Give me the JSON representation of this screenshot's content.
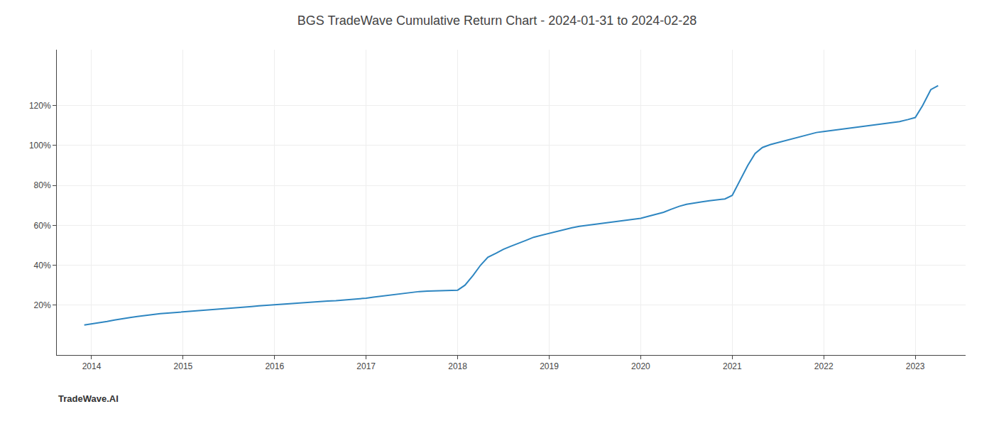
{
  "chart_data": {
    "type": "line",
    "title": "BGS TradeWave Cumulative Return Chart - 2024-01-31 to 2024-02-28",
    "annotations": [
      "TradeWave.AI"
    ],
    "color": "#2e86c1",
    "grid": true,
    "xlim": [
      2013.62,
      2023.55
    ],
    "xticks": [
      2014,
      2015,
      2016,
      2017,
      2018,
      2019,
      2020,
      2021,
      2022,
      2023
    ],
    "ylim": [
      -5,
      148
    ],
    "yticks": [
      {
        "value": 20,
        "label": "20%"
      },
      {
        "value": 40,
        "label": "40%"
      },
      {
        "value": 60,
        "label": "60%"
      },
      {
        "value": 80,
        "label": "80%"
      },
      {
        "value": 100,
        "label": "100%"
      },
      {
        "value": 120,
        "label": "120%"
      }
    ],
    "x": [
      2013.92,
      2014.0,
      2014.08,
      2014.17,
      2014.25,
      2014.33,
      2014.42,
      2014.5,
      2014.58,
      2014.67,
      2014.75,
      2014.83,
      2014.92,
      2015.0,
      2015.08,
      2015.17,
      2015.25,
      2015.33,
      2015.42,
      2015.5,
      2015.58,
      2015.67,
      2015.75,
      2015.83,
      2015.92,
      2016.0,
      2016.08,
      2016.17,
      2016.25,
      2016.33,
      2016.42,
      2016.5,
      2016.58,
      2016.67,
      2016.75,
      2016.83,
      2016.92,
      2017.0,
      2017.08,
      2017.17,
      2017.25,
      2017.33,
      2017.42,
      2017.5,
      2017.58,
      2017.67,
      2017.75,
      2017.83,
      2017.92,
      2018.0,
      2018.08,
      2018.17,
      2018.25,
      2018.33,
      2018.42,
      2018.5,
      2018.58,
      2018.67,
      2018.75,
      2018.83,
      2018.92,
      2019.0,
      2019.08,
      2019.17,
      2019.25,
      2019.33,
      2019.42,
      2019.5,
      2019.58,
      2019.67,
      2019.75,
      2019.83,
      2019.92,
      2020.0,
      2020.08,
      2020.17,
      2020.25,
      2020.33,
      2020.42,
      2020.5,
      2020.58,
      2020.67,
      2020.75,
      2020.83,
      2020.92,
      2021.0,
      2021.08,
      2021.17,
      2021.25,
      2021.33,
      2021.42,
      2021.5,
      2021.58,
      2021.67,
      2021.75,
      2021.83,
      2021.92,
      2022.0,
      2022.08,
      2022.17,
      2022.25,
      2022.33,
      2022.42,
      2022.5,
      2022.58,
      2022.67,
      2022.75,
      2022.83,
      2022.92,
      2023.0,
      2023.08,
      2023.17,
      2023.25
    ],
    "values": [
      10.0,
      10.5,
      11.0,
      11.8,
      12.5,
      13.2,
      13.8,
      14.3,
      14.8,
      15.3,
      15.7,
      16.0,
      16.3,
      16.6,
      16.9,
      17.2,
      17.5,
      17.8,
      18.1,
      18.4,
      18.7,
      19.0,
      19.3,
      19.6,
      19.9,
      20.2,
      20.5,
      20.8,
      21.1,
      21.4,
      21.6,
      21.8,
      22.0,
      22.2,
      22.5,
      22.8,
      23.1,
      23.5,
      24.0,
      24.5,
      25.0,
      25.5,
      26.0,
      26.5,
      26.8,
      27.0,
      27.1,
      27.1,
      27.2,
      27.5,
      30.0,
      35.0,
      40.0,
      44.0,
      46.0,
      48.0,
      49.5,
      51.0,
      52.5,
      54.0,
      55.0,
      56.0,
      57.0,
      58.0,
      58.8,
      59.5,
      60.0,
      60.5,
      61.0,
      61.5,
      62.0,
      62.5,
      63.0,
      63.5,
      64.5,
      65.5,
      66.5,
      68.0,
      69.5,
      70.5,
      71.2,
      71.8,
      72.3,
      72.8,
      73.2,
      75.0,
      82.0,
      90.0,
      96.0,
      99.0,
      100.5,
      101.5,
      102.5,
      103.5,
      104.5,
      105.5,
      106.5,
      107.0,
      107.5,
      108.0,
      108.5,
      109.0,
      109.5,
      110.0,
      110.5,
      111.0,
      111.5,
      112.0,
      113.0,
      114.0,
      120.0,
      128.0,
      130.0
    ]
  }
}
